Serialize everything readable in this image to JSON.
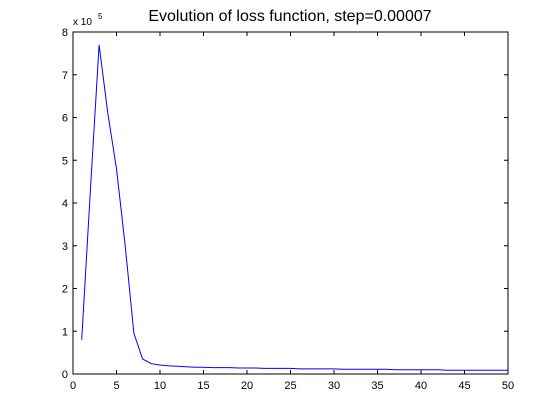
{
  "chart_data": {
    "type": "line",
    "title": "Evolution of loss function, step=0.00007",
    "xlabel": "",
    "ylabel": "",
    "xlim": [
      0,
      50
    ],
    "ylim": [
      0,
      8
    ],
    "x_ticks": [
      0,
      5,
      10,
      15,
      20,
      25,
      30,
      35,
      40,
      45,
      50
    ],
    "y_ticks": [
      0,
      1,
      2,
      3,
      4,
      5,
      6,
      7,
      8
    ],
    "y_multiplier": {
      "base": "x 10",
      "exponent": "5"
    },
    "grid": false,
    "series": [
      {
        "color": "#0000ff",
        "x": [
          1,
          2,
          3,
          4,
          5,
          6,
          7,
          8,
          9,
          10,
          11,
          12,
          13,
          14,
          15,
          16,
          17,
          18,
          19,
          20,
          21,
          22,
          23,
          24,
          25,
          26,
          27,
          28,
          29,
          30,
          31,
          32,
          33,
          34,
          35,
          36,
          37,
          38,
          39,
          40,
          41,
          42,
          43,
          44,
          45,
          46,
          47,
          48,
          49,
          50
        ],
        "y": [
          0.8,
          4.3,
          7.7,
          6.1,
          4.8,
          3.0,
          0.95,
          0.35,
          0.24,
          0.21,
          0.19,
          0.18,
          0.17,
          0.16,
          0.16,
          0.15,
          0.15,
          0.15,
          0.14,
          0.14,
          0.14,
          0.13,
          0.13,
          0.13,
          0.13,
          0.12,
          0.12,
          0.12,
          0.12,
          0.12,
          0.11,
          0.11,
          0.11,
          0.11,
          0.11,
          0.11,
          0.1,
          0.1,
          0.1,
          0.1,
          0.1,
          0.1,
          0.09,
          0.09,
          0.09,
          0.09,
          0.09,
          0.09,
          0.09,
          0.09
        ]
      }
    ]
  }
}
